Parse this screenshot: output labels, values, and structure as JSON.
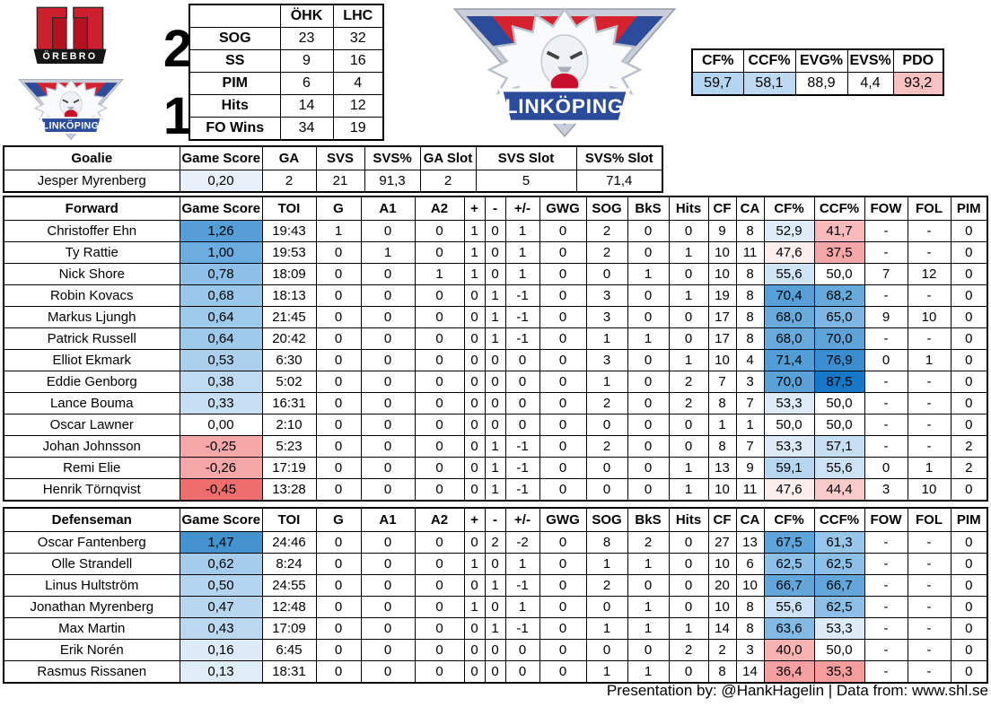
{
  "scoreboard": {
    "home_score": "2",
    "away_score": "1",
    "orebro_banner": "ÖREBRO",
    "linkoping_banner_small": "LINKÖPING",
    "linkoping_banner_large": "LINKÖPING"
  },
  "team_stats": {
    "headers": [
      "",
      "ÖHK",
      "LHC"
    ],
    "rows": [
      {
        "cells": [
          "SOG",
          "23",
          "32"
        ]
      },
      {
        "cells": [
          "SS",
          "9",
          "16"
        ]
      },
      {
        "cells": [
          "PIM",
          "6",
          "4"
        ]
      },
      {
        "cells": [
          "Hits",
          "14",
          "12"
        ]
      },
      {
        "cells": [
          "FO Wins",
          "34",
          "19"
        ]
      }
    ]
  },
  "summary": {
    "headers": [
      "CF%",
      "CCF%",
      "EVG%",
      "EVS%",
      "PDO"
    ],
    "rows": [
      {
        "cells": [
          "59,7",
          "58,1",
          "88,9",
          "4,4",
          "93,2"
        ],
        "bg": {
          "0": "#b4d5ef",
          "1": "#bedaf1",
          "4": "#f8c2c2"
        }
      }
    ]
  },
  "goalie_table": {
    "headers": [
      "Goalie",
      "Game Score",
      "GA",
      "SVS",
      "SVS%",
      "GA Slot",
      "SVS Slot",
      "SVS% Slot"
    ],
    "rows": [
      {
        "cells": [
          "Jesper Myrenberg",
          "0,20",
          "2",
          "21",
          "91,3",
          "2",
          "5",
          "71,4"
        ],
        "bg": {
          "1": "#e8f1fa"
        }
      }
    ]
  },
  "forward_table": {
    "headers": [
      "Forward",
      "Game Score",
      "TOI",
      "G",
      "A1",
      "A2",
      "+",
      "-",
      "+/-",
      "GWG",
      "SOG",
      "BkS",
      "Hits",
      "CF",
      "CA",
      "CF%",
      "CCF%",
      "FOW",
      "FOL",
      "PIM"
    ],
    "rows": [
      {
        "cells": [
          "Christoffer Ehn",
          "1,26",
          "19:43",
          "1",
          "0",
          "0",
          "1",
          "0",
          "1",
          "0",
          "2",
          "0",
          "0",
          "9",
          "8",
          "52,9",
          "41,7",
          "-",
          "-",
          "0"
        ],
        "bg": {
          "1": "#569fd6",
          "15": "#ddecf8",
          "16": "#f8baba"
        }
      },
      {
        "cells": [
          "Ty Rattie",
          "1,00",
          "19:53",
          "0",
          "1",
          "0",
          "1",
          "0",
          "1",
          "0",
          "2",
          "0",
          "1",
          "10",
          "11",
          "47,6",
          "37,5",
          "-",
          "-",
          "0"
        ],
        "bg": {
          "1": "#6eade0",
          "15": "#fdeeee",
          "16": "#f5a6a6"
        }
      },
      {
        "cells": [
          "Nick Shore",
          "0,78",
          "18:09",
          "0",
          "0",
          "1",
          "1",
          "0",
          "1",
          "0",
          "0",
          "1",
          "0",
          "10",
          "8",
          "55,6",
          "50,0",
          "7",
          "12",
          "0"
        ],
        "bg": {
          "1": "#8dc0e7",
          "15": "#cfe5f5"
        }
      },
      {
        "cells": [
          "Robin Kovacs",
          "0,68",
          "18:13",
          "0",
          "0",
          "0",
          "0",
          "1",
          "-1",
          "0",
          "3",
          "0",
          "1",
          "19",
          "8",
          "70,4",
          "68,2",
          "-",
          "-",
          "0"
        ],
        "bg": {
          "1": "#99c7ea",
          "15": "#57a0d7",
          "16": "#66a9da"
        }
      },
      {
        "cells": [
          "Markus Ljungh",
          "0,64",
          "21:45",
          "0",
          "0",
          "0",
          "0",
          "1",
          "-1",
          "0",
          "3",
          "0",
          "0",
          "17",
          "8",
          "68,0",
          "65,0",
          "9",
          "10",
          "0"
        ],
        "bg": {
          "1": "#9dc9ea",
          "15": "#68aadb",
          "16": "#7db6e2"
        }
      },
      {
        "cells": [
          "Patrick Russell",
          "0,64",
          "20:42",
          "0",
          "0",
          "0",
          "0",
          "1",
          "-1",
          "0",
          "1",
          "1",
          "0",
          "17",
          "8",
          "68,0",
          "70,0",
          "-",
          "-",
          "0"
        ],
        "bg": {
          "1": "#9dc9ea",
          "15": "#68aadb",
          "16": "#5ea4d9"
        }
      },
      {
        "cells": [
          "Elliot Ekmark",
          "0,53",
          "6:30",
          "0",
          "0",
          "0",
          "0",
          "0",
          "0",
          "0",
          "3",
          "0",
          "1",
          "10",
          "4",
          "71,4",
          "76,9",
          "0",
          "1",
          "0"
        ],
        "bg": {
          "1": "#aad0ed",
          "15": "#539dd6",
          "16": "#3a8ed0"
        }
      },
      {
        "cells": [
          "Eddie Genborg",
          "0,38",
          "5:02",
          "0",
          "0",
          "0",
          "0",
          "0",
          "0",
          "0",
          "1",
          "0",
          "2",
          "7",
          "3",
          "70,0",
          "87,5",
          "-",
          "-",
          "0"
        ],
        "bg": {
          "1": "#bfdbf2",
          "15": "#5aa1d8",
          "16": "#1878c8"
        }
      },
      {
        "cells": [
          "Lance Bouma",
          "0,33",
          "16:31",
          "0",
          "0",
          "0",
          "0",
          "0",
          "0",
          "0",
          "2",
          "0",
          "2",
          "8",
          "7",
          "53,3",
          "50,0",
          "-",
          "-",
          "0"
        ],
        "bg": {
          "1": "#c6dff4",
          "15": "#dcebf7"
        }
      },
      {
        "cells": [
          "Oscar Lawner",
          "0,00",
          "2:10",
          "0",
          "0",
          "0",
          "0",
          "0",
          "0",
          "0",
          "0",
          "0",
          "0",
          "1",
          "1",
          "50,0",
          "50,0",
          "-",
          "-",
          "0"
        ]
      },
      {
        "cells": [
          "Johan Johnsson",
          "-0,25",
          "5:23",
          "0",
          "0",
          "0",
          "0",
          "1",
          "-1",
          "0",
          "2",
          "0",
          "0",
          "8",
          "7",
          "53,3",
          "57,1",
          "-",
          "-",
          "2"
        ],
        "bg": {
          "1": "#f6a8a8",
          "15": "#dcebf7",
          "16": "#c6dff3"
        }
      },
      {
        "cells": [
          "Remi Elie",
          "-0,26",
          "17:19",
          "0",
          "0",
          "0",
          "0",
          "1",
          "-1",
          "0",
          "0",
          "0",
          "1",
          "13",
          "9",
          "59,1",
          "55,6",
          "0",
          "1",
          "2"
        ],
        "bg": {
          "1": "#f6a7a7",
          "15": "#b6d6f0",
          "16": "#cde3f5"
        }
      },
      {
        "cells": [
          "Henrik Törnqvist",
          "-0,45",
          "13:28",
          "0",
          "0",
          "0",
          "0",
          "1",
          "-1",
          "0",
          "0",
          "0",
          "1",
          "10",
          "11",
          "47,6",
          "44,4",
          "3",
          "10",
          "0"
        ],
        "bg": {
          "1": "#ee6e6e",
          "15": "#fdeeee",
          "16": "#f9caca"
        }
      }
    ]
  },
  "defense_table": {
    "headers": [
      "Defenseman",
      "Game Score",
      "TOI",
      "G",
      "A1",
      "A2",
      "+",
      "-",
      "+/-",
      "GWG",
      "SOG",
      "BkS",
      "Hits",
      "CF",
      "CA",
      "CF%",
      "CCF%",
      "FOW",
      "FOL",
      "PIM"
    ],
    "rows": [
      {
        "cells": [
          "Oscar Fantenberg",
          "1,47",
          "24:46",
          "0",
          "0",
          "0",
          "0",
          "2",
          "-2",
          "0",
          "8",
          "2",
          "0",
          "27",
          "13",
          "67,5",
          "61,3",
          "-",
          "-",
          "0"
        ],
        "bg": {
          "1": "#4493cf",
          "15": "#5ea4d9",
          "16": "#97c6e9"
        }
      },
      {
        "cells": [
          "Olle Strandell",
          "0,62",
          "8:24",
          "0",
          "0",
          "0",
          "1",
          "0",
          "1",
          "0",
          "1",
          "1",
          "0",
          "10",
          "6",
          "62,5",
          "62,5",
          "-",
          "-",
          "0"
        ],
        "bg": {
          "1": "#a5cdeb",
          "15": "#8dc0e7",
          "16": "#8dc0e7"
        }
      },
      {
        "cells": [
          "Linus Hultström",
          "0,50",
          "24:55",
          "0",
          "0",
          "0",
          "0",
          "1",
          "-1",
          "0",
          "2",
          "0",
          "0",
          "20",
          "10",
          "66,7",
          "66,7",
          "-",
          "-",
          "0"
        ],
        "bg": {
          "1": "#b4d5ef",
          "15": "#63a7da",
          "16": "#63a7da"
        }
      },
      {
        "cells": [
          "Jonathan Myrenberg",
          "0,47",
          "12:48",
          "0",
          "0",
          "0",
          "1",
          "0",
          "1",
          "0",
          "0",
          "1",
          "0",
          "10",
          "8",
          "55,6",
          "62,5",
          "-",
          "-",
          "0"
        ],
        "bg": {
          "1": "#b7d7f0",
          "15": "#cde3f5",
          "16": "#8dc0e7"
        }
      },
      {
        "cells": [
          "Max Martin",
          "0,43",
          "17:09",
          "0",
          "0",
          "0",
          "0",
          "1",
          "-1",
          "0",
          "1",
          "1",
          "1",
          "14",
          "8",
          "63,6",
          "53,3",
          "-",
          "-",
          "0"
        ],
        "bg": {
          "1": "#bad8f0",
          "15": "#83bae4",
          "16": "#dcebf7"
        }
      },
      {
        "cells": [
          "Erik Norén",
          "0,16",
          "6:45",
          "0",
          "0",
          "0",
          "0",
          "0",
          "0",
          "0",
          "0",
          "0",
          "2",
          "2",
          "3",
          "40,0",
          "50,0",
          "-",
          "-",
          "0"
        ],
        "bg": {
          "1": "#dcebf7",
          "15": "#f7b2b2"
        }
      },
      {
        "cells": [
          "Rasmus Rissanen",
          "0,13",
          "18:31",
          "0",
          "0",
          "0",
          "0",
          "0",
          "0",
          "0",
          "1",
          "1",
          "0",
          "8",
          "14",
          "36,4",
          "35,3",
          "-",
          "-",
          "0"
        ],
        "bg": {
          "1": "#dfedf8",
          "15": "#f4a0a0",
          "16": "#f49d9d"
        }
      }
    ]
  },
  "footer": {
    "text": "Presentation by: @HankHagelin | Data from: www.shl.se"
  },
  "brand_colors": {
    "orebro_red": "#cd1f2d",
    "linkoping_red": "#d6212f",
    "linkoping_blue": "#2b4c9b",
    "positive_blue": "#4493cf",
    "negative_red": "#ee6e6e"
  }
}
